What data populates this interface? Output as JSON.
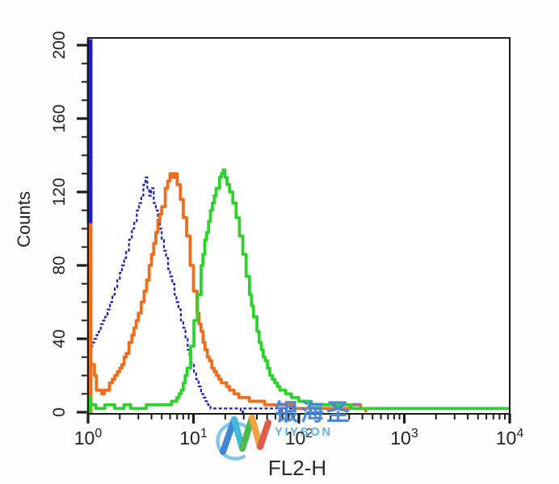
{
  "watermark": {
    "cn_text": "银海圣",
    "tm": "™",
    "en_text": "YIYSON",
    "cn_color": "#4585d6",
    "en_color": "#5fb0e2"
  },
  "chart_data": {
    "type": "line",
    "subtype": "flow-cytometry-histogram-overlay",
    "title": "",
    "xlabel": "FL2-H",
    "ylabel": "Counts",
    "x_scale": "log10",
    "x_range": [
      1,
      10000
    ],
    "y_range": [
      0,
      200
    ],
    "y_ticks": [
      0,
      40,
      80,
      120,
      160,
      200
    ],
    "y_minor_step": 10,
    "x_tick_base": "10",
    "x_major_exponents": [
      0,
      1,
      2,
      3,
      4
    ],
    "grid": false,
    "legend": "none",
    "frame_color": "#1a1a1a",
    "tick_color": "#1b1b1b",
    "label_color": "#222222",
    "series": [
      {
        "name": "blue-dashed-histogram",
        "color": "#1f1fbe",
        "stroke_width": 2.2,
        "dash": "4 2.6",
        "first_channel_spike": 204,
        "spike_width": 7,
        "points": [
          [
            1.05,
            35
          ],
          [
            1.2,
            42
          ],
          [
            1.45,
            52
          ],
          [
            1.7,
            63
          ],
          [
            2.0,
            76
          ],
          [
            2.3,
            88
          ],
          [
            2.6,
            99
          ],
          [
            2.9,
            109
          ],
          [
            3.2,
            118
          ],
          [
            3.35,
            124
          ],
          [
            3.5,
            127
          ],
          [
            3.65,
            121
          ],
          [
            3.8,
            118
          ],
          [
            3.95,
            122
          ],
          [
            4.2,
            114
          ],
          [
            4.6,
            104
          ],
          [
            5.0,
            94
          ],
          [
            5.5,
            83
          ],
          [
            6.0,
            74
          ],
          [
            6.6,
            64
          ],
          [
            7.2,
            55
          ],
          [
            8.0,
            45
          ],
          [
            8.8,
            34
          ],
          [
            9.6,
            26
          ],
          [
            10.6,
            17
          ],
          [
            11.8,
            10
          ],
          [
            13,
            6
          ],
          [
            14.5,
            3
          ],
          [
            16,
            2
          ],
          [
            20,
            1.5
          ],
          [
            28,
            1
          ],
          [
            45,
            1.5
          ],
          [
            65,
            1
          ],
          [
            90,
            1.5
          ],
          [
            120,
            1
          ],
          [
            160,
            1
          ]
        ]
      },
      {
        "name": "orange-histogram",
        "color": "#ee6e1e",
        "stroke_width": 3.8,
        "dash": null,
        "first_channel_spike": 103,
        "spike_width": 7,
        "points": [
          [
            1.1,
            26
          ],
          [
            1.2,
            13
          ],
          [
            1.35,
            10
          ],
          [
            1.5,
            13
          ],
          [
            1.7,
            17
          ],
          [
            2.0,
            24
          ],
          [
            2.3,
            32
          ],
          [
            2.6,
            42
          ],
          [
            3.0,
            54
          ],
          [
            3.4,
            66
          ],
          [
            3.8,
            79
          ],
          [
            4.2,
            92
          ],
          [
            4.6,
            103
          ],
          [
            5.0,
            112
          ],
          [
            5.4,
            121
          ],
          [
            5.7,
            126
          ],
          [
            6.0,
            130
          ],
          [
            6.3,
            127
          ],
          [
            6.6,
            129
          ],
          [
            7.0,
            123
          ],
          [
            7.5,
            116
          ],
          [
            8.0,
            107
          ],
          [
            8.6,
            95
          ],
          [
            9.3,
            80
          ],
          [
            10.0,
            66
          ],
          [
            10.8,
            54
          ],
          [
            11.8,
            43
          ],
          [
            12.9,
            34
          ],
          [
            14.2,
            27
          ],
          [
            15.7,
            22
          ],
          [
            17.4,
            18
          ],
          [
            19.4,
            15
          ],
          [
            22,
            12
          ],
          [
            25.5,
            9.5
          ],
          [
            30,
            7.5
          ],
          [
            36,
            6
          ],
          [
            45,
            5
          ],
          [
            58,
            4
          ],
          [
            75,
            3.2
          ],
          [
            100,
            2.8
          ],
          [
            135,
            2.3
          ],
          [
            180,
            2.2
          ],
          [
            240,
            2.2
          ],
          [
            295,
            2.3
          ],
          [
            305,
            4.5
          ],
          [
            375,
            4.5
          ],
          [
            386,
            2
          ],
          [
            410,
            1.5
          ],
          [
            430,
            1
          ]
        ]
      },
      {
        "name": "green-histogram",
        "color": "#2cd32c",
        "stroke_width": 3.8,
        "dash": null,
        "first_channel_spike": 9,
        "spike_width": 5,
        "points": [
          [
            1.08,
            3.5
          ],
          [
            1.3,
            2.5
          ],
          [
            1.6,
            4
          ],
          [
            1.9,
            2.5
          ],
          [
            2.3,
            3.5
          ],
          [
            2.8,
            2.5
          ],
          [
            3.4,
            3
          ],
          [
            4.1,
            3.5
          ],
          [
            4.9,
            4
          ],
          [
            5.8,
            4.5
          ],
          [
            6.6,
            6
          ],
          [
            7.3,
            9
          ],
          [
            8.0,
            15
          ],
          [
            8.7,
            24
          ],
          [
            9.4,
            36
          ],
          [
            10.1,
            50
          ],
          [
            10.9,
            64
          ],
          [
            11.8,
            79
          ],
          [
            12.8,
            93
          ],
          [
            13.9,
            104
          ],
          [
            15.1,
            114
          ],
          [
            16.4,
            122
          ],
          [
            17.7,
            127
          ],
          [
            18.4,
            130
          ],
          [
            19.1,
            132
          ],
          [
            19.9,
            128
          ],
          [
            20.8,
            124
          ],
          [
            22,
            120
          ],
          [
            23.6,
            114
          ],
          [
            25.4,
            106
          ],
          [
            27.3,
            96
          ],
          [
            29.4,
            85
          ],
          [
            31.6,
            74
          ],
          [
            34,
            63
          ],
          [
            37,
            52
          ],
          [
            40,
            43
          ],
          [
            44,
            34
          ],
          [
            48,
            27
          ],
          [
            53,
            21
          ],
          [
            59,
            16
          ],
          [
            66,
            12.5
          ],
          [
            75,
            10
          ],
          [
            85,
            8
          ],
          [
            95,
            7
          ],
          [
            105,
            6
          ],
          [
            120,
            5
          ],
          [
            140,
            4.5
          ],
          [
            160,
            4
          ],
          [
            185,
            4.5
          ],
          [
            205,
            3.5
          ],
          [
            240,
            3
          ],
          [
            280,
            3.3
          ],
          [
            330,
            2.7
          ],
          [
            400,
            3
          ],
          [
            480,
            2.7
          ],
          [
            600,
            3
          ],
          [
            750,
            2.7
          ],
          [
            950,
            3
          ],
          [
            1300,
            2.7
          ],
          [
            1800,
            3
          ],
          [
            2500,
            2.7
          ],
          [
            3400,
            3
          ],
          [
            4700,
            2.7
          ],
          [
            6300,
            3
          ],
          [
            8200,
            2.7
          ],
          [
            10000,
            3
          ]
        ]
      }
    ]
  }
}
